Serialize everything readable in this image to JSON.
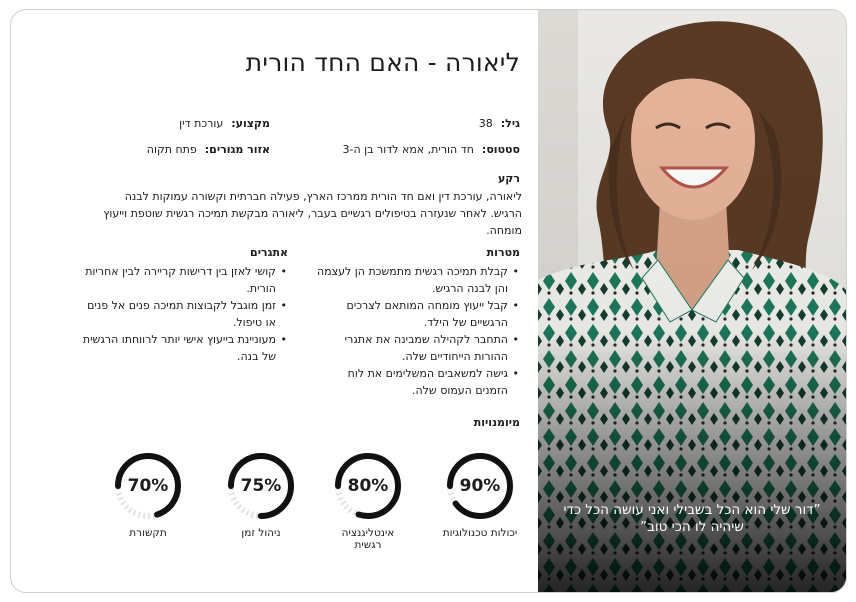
{
  "profile": {
    "title": "ליאורה - האם החד הורית",
    "age_label": "גיל:",
    "age_value": "38",
    "profession_label": "מקצוע:",
    "profession_value": "עורכת דין",
    "status_label": "סטטוס:",
    "status_value": "חד הורית, אמא לדור בן ה-3",
    "residence_label": "אזור מגורים:",
    "residence_value": "פתח תקוה"
  },
  "background": {
    "heading": "רקע",
    "text": "ליאורה, עורכת דין ואם חד הורית ממרכז הארץ, פעילה חברתית וקשורה עמוקות לבנה הרגיש. לאחר שנעזרה בטיפולים רגשיים בעבר, ליאורה מבקשת תמיכה רגשית שוטפת וייעוץ מומחה."
  },
  "goals": {
    "heading": "מטרות",
    "items": [
      "קבלת תמיכה רגשית מתמשכת הן לעצמה והן לבנה הרגיש.",
      "קבל ייעוץ מומחה המותאם לצרכים הרגשיים של הילד.",
      "התחבר לקהילה שמבינה את אתגרי ההורות הייחודיים שלה.",
      "גישה למשאבים המשלימים את לוח הזמנים העמוס שלה."
    ]
  },
  "challenges": {
    "heading": "אתגרים",
    "items": [
      "קושי לאזן בין דרישות קריירה לבין אחריות הורית.",
      "זמן מוגבל לקבוצות תמיכה פנים אל פנים או טיפול.",
      "מעוניינת בייעוץ אישי יותר לרווחתו הרגשית של בנה."
    ]
  },
  "skills": {
    "heading": "מיומנויות",
    "items": [
      {
        "label": "יכולות טכנולוגיות",
        "value": 90,
        "display": "90%"
      },
      {
        "label": "אינטליגנציה רגשית",
        "value": 80,
        "display": "80%"
      },
      {
        "label": "ניהול זמן",
        "value": 75,
        "display": "75%"
      },
      {
        "label": "תקשורת",
        "value": 70,
        "display": "70%"
      }
    ]
  },
  "quote": "”דור שלי הוא הכל בשבילי ואני עושה הכל כדי שיהיה לו הכי טוב”",
  "colors": {
    "gauge_fill": "#111111",
    "gauge_track": "#e2e2e2",
    "shirt_green": "#1f7a5e"
  }
}
